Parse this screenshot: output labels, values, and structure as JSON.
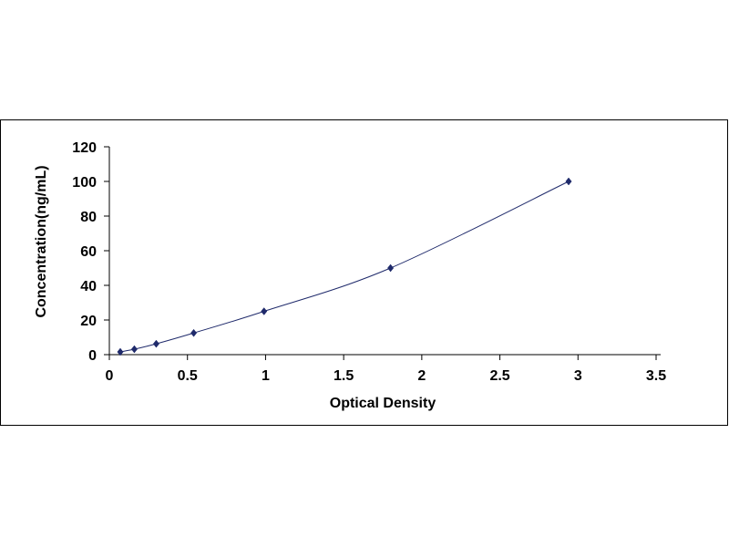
{
  "chart_data": {
    "type": "scatter",
    "title": "",
    "xlabel": "Optical Density",
    "ylabel": "Concentration(ng/mL)",
    "xlim": [
      0,
      3.5
    ],
    "ylim": [
      0,
      120
    ],
    "x_ticks": [
      0,
      0.5,
      1,
      1.5,
      2,
      2.5,
      3,
      3.5
    ],
    "x_tick_labels": [
      "0",
      "0.5",
      "1",
      "1.5",
      "2",
      "2.5",
      "3",
      "3.5"
    ],
    "y_ticks": [
      0,
      20,
      40,
      60,
      80,
      100,
      120
    ],
    "y_tick_labels": [
      "0",
      "20",
      "40",
      "60",
      "80",
      "100",
      "120"
    ],
    "grid": false,
    "legend": "none",
    "series": [
      {
        "marker": "diamond",
        "color": "#1f2a6b",
        "fit_line": true,
        "points": [
          {
            "x": 0.07,
            "y": 1.56
          },
          {
            "x": 0.16,
            "y": 3.13
          },
          {
            "x": 0.3,
            "y": 6.25
          },
          {
            "x": 0.54,
            "y": 12.5
          },
          {
            "x": 0.99,
            "y": 25
          },
          {
            "x": 1.8,
            "y": 50
          },
          {
            "x": 2.94,
            "y": 100
          }
        ]
      }
    ]
  }
}
